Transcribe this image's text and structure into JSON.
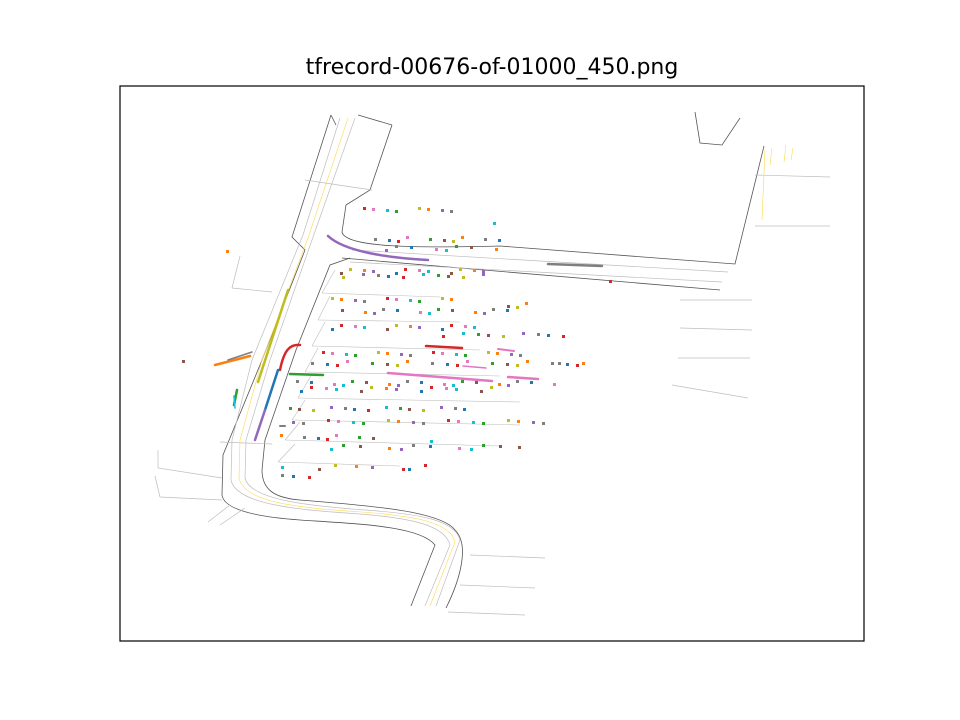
{
  "figure": {
    "title": "tfrecord-00676-of-01000_450.png"
  },
  "colors": {
    "road_edge": "#555555",
    "lane_line": "#bdbdbd",
    "center_line": "#ffd84a",
    "frame": "#000000",
    "tab_blue": "#1f77b4",
    "tab_orange": "#ff7f0e",
    "tab_green": "#2ca02c",
    "tab_red": "#d62728",
    "tab_purple": "#9467bd",
    "tab_brown": "#8c564b",
    "tab_pink": "#e377c2",
    "tab_gray": "#7f7f7f",
    "tab_olive": "#bcbd22",
    "tab_cyan": "#17becf"
  }
}
